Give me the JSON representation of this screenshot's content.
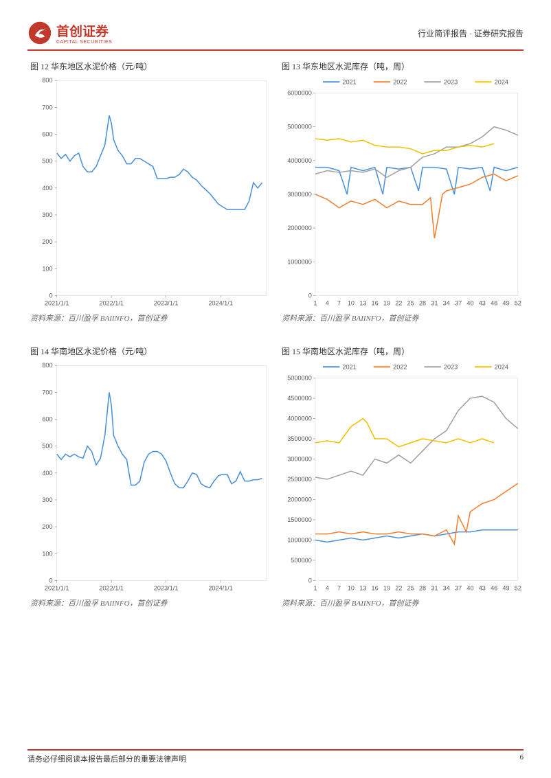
{
  "header": {
    "logo_main": "首创证券",
    "logo_sub": "CAPITAL SECURITIES",
    "right_text": "行业简评报告 · 证券研究报告"
  },
  "charts": {
    "c12": {
      "title": "图 12 华东地区水泥价格（元/吨）",
      "type": "line",
      "source": "资料来源：百川盈孚 BAIINFO，首创证券",
      "ylim": [
        0,
        800
      ],
      "ytick_step": 100,
      "x_labels": [
        "2021/1/1",
        "2022/1/1",
        "2023/1/1",
        "2024/1/1"
      ],
      "line_color": "#4a90d9",
      "line_width": 1.5,
      "background_color": "#ffffff",
      "grid_on": false,
      "data": [
        [
          0,
          530
        ],
        [
          2,
          510
        ],
        [
          4,
          525
        ],
        [
          6,
          500
        ],
        [
          8,
          520
        ],
        [
          10,
          530
        ],
        [
          12,
          480
        ],
        [
          14,
          460
        ],
        [
          16,
          460
        ],
        [
          18,
          480
        ],
        [
          20,
          520
        ],
        [
          22,
          560
        ],
        [
          24,
          670
        ],
        [
          25,
          640
        ],
        [
          26,
          580
        ],
        [
          28,
          540
        ],
        [
          30,
          520
        ],
        [
          32,
          490
        ],
        [
          34,
          490
        ],
        [
          36,
          510
        ],
        [
          38,
          510
        ],
        [
          40,
          500
        ],
        [
          42,
          490
        ],
        [
          44,
          480
        ],
        [
          46,
          435
        ],
        [
          48,
          435
        ],
        [
          50,
          435
        ],
        [
          52,
          440
        ],
        [
          54,
          440
        ],
        [
          56,
          450
        ],
        [
          58,
          470
        ],
        [
          60,
          460
        ],
        [
          62,
          440
        ],
        [
          64,
          430
        ],
        [
          66,
          410
        ],
        [
          68,
          395
        ],
        [
          70,
          380
        ],
        [
          72,
          360
        ],
        [
          74,
          340
        ],
        [
          76,
          330
        ],
        [
          78,
          320
        ],
        [
          80,
          320
        ],
        [
          82,
          320
        ],
        [
          84,
          320
        ],
        [
          86,
          320
        ],
        [
          88,
          350
        ],
        [
          90,
          420
        ],
        [
          92,
          400
        ],
        [
          94,
          420
        ]
      ]
    },
    "c13": {
      "title": "图 13 华东地区水泥库存（吨，周）",
      "type": "line",
      "source": "资料来源：百川盈孚 BAIINFO，首创证券",
      "ylim": [
        0,
        6000000
      ],
      "ytick_step": 1000000,
      "x_labels": [
        "1",
        "4",
        "7",
        "10",
        "13",
        "16",
        "19",
        "22",
        "25",
        "28",
        "31",
        "34",
        "37",
        "40",
        "43",
        "46",
        "49",
        "52"
      ],
      "legend": [
        {
          "label": "2021",
          "color": "#4a90d9"
        },
        {
          "label": "2022",
          "color": "#f08030"
        },
        {
          "label": "2023",
          "color": "#a0a0a0"
        },
        {
          "label": "2024",
          "color": "#f0c000"
        }
      ],
      "background_color": "#ffffff",
      "line_width": 1.5,
      "series": {
        "2021": [
          [
            1,
            3800000
          ],
          [
            4,
            3800000
          ],
          [
            7,
            3700000
          ],
          [
            9,
            3000000
          ],
          [
            10,
            3800000
          ],
          [
            13,
            3700000
          ],
          [
            16,
            3800000
          ],
          [
            18,
            3000000
          ],
          [
            19,
            3800000
          ],
          [
            22,
            3750000
          ],
          [
            25,
            3800000
          ],
          [
            27,
            3100000
          ],
          [
            28,
            3800000
          ],
          [
            31,
            3800000
          ],
          [
            34,
            3750000
          ],
          [
            36,
            3000000
          ],
          [
            37,
            3800000
          ],
          [
            40,
            3750000
          ],
          [
            43,
            3800000
          ],
          [
            45,
            3100000
          ],
          [
            46,
            3800000
          ],
          [
            49,
            3700000
          ],
          [
            52,
            3800000
          ]
        ],
        "2022": [
          [
            1,
            3000000
          ],
          [
            4,
            2850000
          ],
          [
            7,
            2600000
          ],
          [
            10,
            2800000
          ],
          [
            13,
            2700000
          ],
          [
            16,
            2850000
          ],
          [
            19,
            2600000
          ],
          [
            22,
            2800000
          ],
          [
            25,
            2700000
          ],
          [
            28,
            2700000
          ],
          [
            30,
            2900000
          ],
          [
            31,
            1700000
          ],
          [
            33,
            3000000
          ],
          [
            34,
            3100000
          ],
          [
            37,
            3200000
          ],
          [
            40,
            3300000
          ],
          [
            43,
            3500000
          ],
          [
            46,
            3600000
          ],
          [
            49,
            3400000
          ],
          [
            52,
            3550000
          ]
        ],
        "2023": [
          [
            1,
            3600000
          ],
          [
            4,
            3700000
          ],
          [
            7,
            3650000
          ],
          [
            10,
            3700000
          ],
          [
            13,
            3650000
          ],
          [
            16,
            3750000
          ],
          [
            19,
            3500000
          ],
          [
            22,
            3700000
          ],
          [
            25,
            3800000
          ],
          [
            28,
            4100000
          ],
          [
            31,
            4200000
          ],
          [
            34,
            4400000
          ],
          [
            37,
            4400000
          ],
          [
            40,
            4500000
          ],
          [
            43,
            4700000
          ],
          [
            46,
            5000000
          ],
          [
            49,
            4900000
          ],
          [
            52,
            4750000
          ]
        ],
        "2024": [
          [
            1,
            4650000
          ],
          [
            4,
            4600000
          ],
          [
            7,
            4650000
          ],
          [
            10,
            4550000
          ],
          [
            13,
            4600000
          ],
          [
            16,
            4450000
          ],
          [
            19,
            4400000
          ],
          [
            22,
            4400000
          ],
          [
            25,
            4350000
          ],
          [
            28,
            4200000
          ],
          [
            31,
            4300000
          ],
          [
            34,
            4300000
          ],
          [
            37,
            4400000
          ],
          [
            40,
            4450000
          ],
          [
            43,
            4400000
          ],
          [
            46,
            4500000
          ]
        ]
      }
    },
    "c14": {
      "title": "图 14 华南地区水泥价格（元/吨）",
      "type": "line",
      "source": "资料来源：百川盈孚 BAIINFO，首创证券",
      "ylim": [
        0,
        800
      ],
      "ytick_step": 100,
      "x_labels": [
        "2021/1/1",
        "2022/1/1",
        "2023/1/1",
        "2024/1/1"
      ],
      "line_color": "#4a90d9",
      "line_width": 1.5,
      "data": [
        [
          0,
          470
        ],
        [
          2,
          450
        ],
        [
          4,
          470
        ],
        [
          6,
          460
        ],
        [
          8,
          470
        ],
        [
          10,
          460
        ],
        [
          12,
          455
        ],
        [
          14,
          500
        ],
        [
          16,
          480
        ],
        [
          18,
          430
        ],
        [
          20,
          455
        ],
        [
          22,
          540
        ],
        [
          24,
          700
        ],
        [
          25,
          650
        ],
        [
          26,
          540
        ],
        [
          28,
          500
        ],
        [
          30,
          470
        ],
        [
          32,
          450
        ],
        [
          34,
          355
        ],
        [
          36,
          355
        ],
        [
          38,
          370
        ],
        [
          40,
          440
        ],
        [
          42,
          470
        ],
        [
          44,
          480
        ],
        [
          46,
          480
        ],
        [
          48,
          470
        ],
        [
          50,
          445
        ],
        [
          52,
          400
        ],
        [
          54,
          360
        ],
        [
          56,
          345
        ],
        [
          58,
          345
        ],
        [
          60,
          370
        ],
        [
          62,
          400
        ],
        [
          64,
          395
        ],
        [
          66,
          360
        ],
        [
          68,
          350
        ],
        [
          70,
          345
        ],
        [
          72,
          370
        ],
        [
          74,
          390
        ],
        [
          76,
          395
        ],
        [
          78,
          395
        ],
        [
          80,
          360
        ],
        [
          82,
          370
        ],
        [
          84,
          405
        ],
        [
          86,
          370
        ],
        [
          88,
          370
        ],
        [
          90,
          375
        ],
        [
          92,
          375
        ],
        [
          94,
          380
        ]
      ]
    },
    "c15": {
      "title": "图 15 华南地区水泥库存（吨，周）",
      "type": "line",
      "source": "资料来源：百川盈孚 BAIINFO，首创证券",
      "ylim": [
        0,
        5000000
      ],
      "ytick_step": 500000,
      "x_labels": [
        "1",
        "4",
        "7",
        "10",
        "13",
        "16",
        "19",
        "22",
        "25",
        "28",
        "31",
        "34",
        "37",
        "40",
        "43",
        "46",
        "49",
        "52"
      ],
      "legend": [
        {
          "label": "2021",
          "color": "#4a90d9"
        },
        {
          "label": "2022",
          "color": "#f08030"
        },
        {
          "label": "2023",
          "color": "#a0a0a0"
        },
        {
          "label": "2024",
          "color": "#f0c000"
        }
      ],
      "line_width": 1.5,
      "series": {
        "2021": [
          [
            1,
            1000000
          ],
          [
            4,
            950000
          ],
          [
            7,
            1000000
          ],
          [
            10,
            1050000
          ],
          [
            13,
            1000000
          ],
          [
            16,
            1050000
          ],
          [
            19,
            1100000
          ],
          [
            22,
            1050000
          ],
          [
            25,
            1100000
          ],
          [
            28,
            1150000
          ],
          [
            31,
            1100000
          ],
          [
            34,
            1150000
          ],
          [
            37,
            1200000
          ],
          [
            40,
            1200000
          ],
          [
            43,
            1250000
          ],
          [
            46,
            1250000
          ],
          [
            49,
            1250000
          ],
          [
            52,
            1250000
          ]
        ],
        "2022": [
          [
            1,
            1150000
          ],
          [
            4,
            1150000
          ],
          [
            7,
            1200000
          ],
          [
            10,
            1150000
          ],
          [
            13,
            1200000
          ],
          [
            16,
            1150000
          ],
          [
            19,
            1150000
          ],
          [
            22,
            1200000
          ],
          [
            25,
            1150000
          ],
          [
            28,
            1150000
          ],
          [
            31,
            1100000
          ],
          [
            34,
            1250000
          ],
          [
            36,
            900000
          ],
          [
            37,
            1600000
          ],
          [
            39,
            1200000
          ],
          [
            40,
            1700000
          ],
          [
            43,
            1900000
          ],
          [
            46,
            2000000
          ],
          [
            49,
            2200000
          ],
          [
            52,
            2400000
          ]
        ],
        "2023": [
          [
            1,
            2550000
          ],
          [
            4,
            2500000
          ],
          [
            7,
            2600000
          ],
          [
            10,
            2700000
          ],
          [
            13,
            2600000
          ],
          [
            16,
            3000000
          ],
          [
            19,
            2900000
          ],
          [
            22,
            3100000
          ],
          [
            25,
            2900000
          ],
          [
            28,
            3200000
          ],
          [
            31,
            3500000
          ],
          [
            34,
            3700000
          ],
          [
            37,
            4200000
          ],
          [
            40,
            4500000
          ],
          [
            43,
            4550000
          ],
          [
            46,
            4400000
          ],
          [
            49,
            4000000
          ],
          [
            52,
            3750000
          ]
        ],
        "2024": [
          [
            1,
            3400000
          ],
          [
            4,
            3450000
          ],
          [
            7,
            3400000
          ],
          [
            10,
            3800000
          ],
          [
            13,
            4000000
          ],
          [
            14,
            3900000
          ],
          [
            16,
            3500000
          ],
          [
            19,
            3500000
          ],
          [
            22,
            3300000
          ],
          [
            25,
            3400000
          ],
          [
            28,
            3500000
          ],
          [
            31,
            3450000
          ],
          [
            34,
            3400000
          ],
          [
            37,
            3500000
          ],
          [
            40,
            3400000
          ],
          [
            43,
            3500000
          ],
          [
            46,
            3400000
          ]
        ]
      }
    }
  },
  "footer": {
    "disclaimer": "请务必仔细阅读本报告最后部分的重要法律声明",
    "page": "6"
  }
}
